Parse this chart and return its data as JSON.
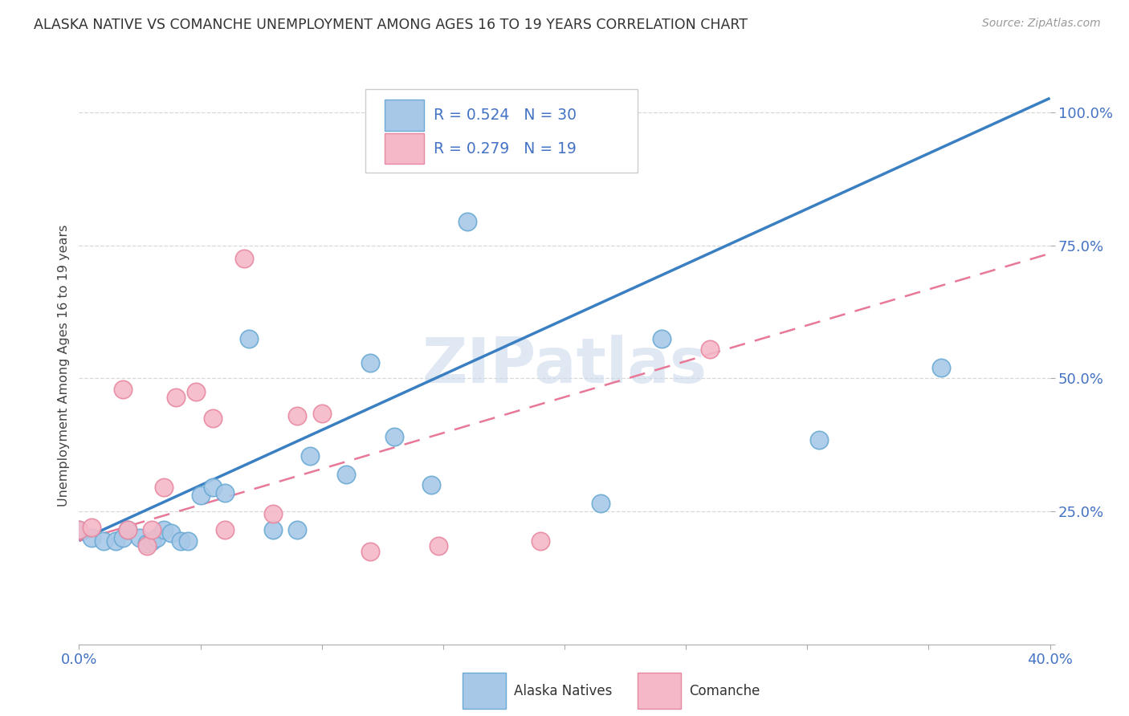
{
  "title": "ALASKA NATIVE VS COMANCHE UNEMPLOYMENT AMONG AGES 16 TO 19 YEARS CORRELATION CHART",
  "source": "Source: ZipAtlas.com",
  "ylabel": "Unemployment Among Ages 16 to 19 years",
  "ytick_vals": [
    0.0,
    0.25,
    0.5,
    0.75,
    1.0
  ],
  "ytick_labels": [
    "",
    "25.0%",
    "50.0%",
    "75.0%",
    "100.0%"
  ],
  "xlim": [
    0,
    0.4
  ],
  "ylim": [
    0,
    1.05
  ],
  "alaska_R": 0.524,
  "alaska_N": 30,
  "comanche_R": 0.279,
  "comanche_N": 19,
  "alaska_color": "#a8c8e8",
  "alaska_edge": "#6aaad4",
  "comanche_color": "#f4b8c8",
  "comanche_edge": "#e888a0",
  "alaska_line_color": "#3a7fc1",
  "comanche_line_color": "#e87898",
  "axis_tick_color": "#4472c4",
  "grid_color": "#d8d8d8",
  "watermark_color": "#ccdaec",
  "alaska_line_intercept": 0.195,
  "alaska_line_slope": 2.08,
  "comanche_line_intercept": 0.195,
  "comanche_line_slope": 1.35,
  "alaska_x": [
    0.0,
    0.005,
    0.01,
    0.015,
    0.018,
    0.02,
    0.025,
    0.028,
    0.03,
    0.032,
    0.035,
    0.038,
    0.042,
    0.045,
    0.05,
    0.055,
    0.06,
    0.07,
    0.08,
    0.09,
    0.095,
    0.11,
    0.12,
    0.13,
    0.145,
    0.16,
    0.215,
    0.24,
    0.305,
    0.355
  ],
  "alaska_y": [
    0.215,
    0.2,
    0.195,
    0.195,
    0.2,
    0.215,
    0.2,
    0.19,
    0.195,
    0.2,
    0.215,
    0.21,
    0.195,
    0.195,
    0.28,
    0.295,
    0.285,
    0.575,
    0.215,
    0.215,
    0.355,
    0.32,
    0.53,
    0.39,
    0.3,
    0.795,
    0.265,
    0.575,
    0.385,
    0.52
  ],
  "comanche_x": [
    0.0,
    0.005,
    0.018,
    0.02,
    0.028,
    0.03,
    0.035,
    0.04,
    0.048,
    0.055,
    0.06,
    0.068,
    0.08,
    0.09,
    0.1,
    0.12,
    0.148,
    0.19,
    0.26
  ],
  "comanche_y": [
    0.215,
    0.22,
    0.48,
    0.215,
    0.185,
    0.215,
    0.295,
    0.465,
    0.475,
    0.425,
    0.215,
    0.725,
    0.245,
    0.43,
    0.435,
    0.175,
    0.185,
    0.195,
    0.555
  ]
}
